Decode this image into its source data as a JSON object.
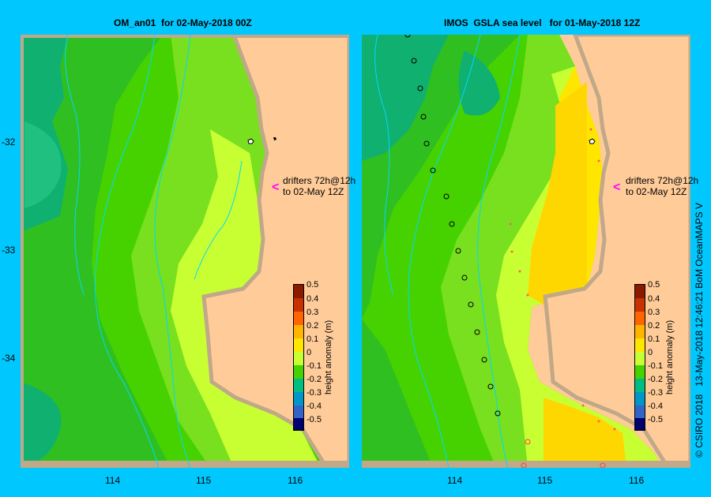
{
  "panels": [
    {
      "title": "OM_an01  for 02-May-2018 00Z",
      "drifter_note": "drifters 72h@12h\nto 02-May 12Z"
    },
    {
      "title": "IMOS  GSLA sea level   for 01-May-2018 12Z",
      "drifter_note": "drifters 72h@12h\nto 02-May 12Z"
    }
  ],
  "axes": {
    "x_ticks": [
      "114",
      "115",
      "116"
    ],
    "y_ticks": [
      "-32",
      "-33",
      "-34"
    ]
  },
  "colorbar": {
    "label": "height anomaly (m)",
    "ticks": [
      "0.5",
      "0.4",
      "0.3",
      "0.2",
      "0.1",
      "0",
      "-0.1",
      "-0.2",
      "-0.3",
      "-0.4",
      "-0.5"
    ],
    "colors": [
      "#8b1a00",
      "#c83200",
      "#ff6400",
      "#ffb400",
      "#ffe600",
      "#c8ff32",
      "#46d200",
      "#00be82",
      "#0096c8",
      "#3264c8",
      "#1e1e96",
      "#00006e"
    ]
  },
  "credit": "© CSIRO 2018   13-May-2018 12:46:21 BoM OceanMAPS V"
}
